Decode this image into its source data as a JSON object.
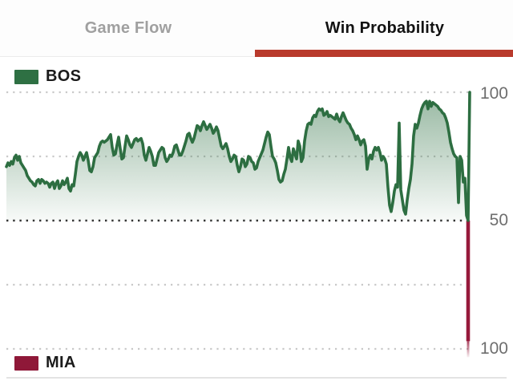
{
  "tabs": {
    "game_flow_label": "Game Flow",
    "win_probability_label": "Win Probability",
    "active_tab": "Win Probability",
    "active_underline_color": "#b93a2c"
  },
  "legend": {
    "top_team": "BOS",
    "top_color": "#2e7043",
    "bottom_team": "MIA",
    "bottom_color": "#8f1838"
  },
  "axis": {
    "labels": [
      {
        "text": "100",
        "side": "BOS"
      },
      {
        "text": "50",
        "side": "mid"
      },
      {
        "text": "100",
        "side": "MIA"
      }
    ]
  },
  "colors": {
    "bos_line": "#2d6e41",
    "mia_line": "#96193b",
    "grid_light": "#c9c9c9",
    "grid_dark": "#343434",
    "inactive_tab_text": "#a0a0a0",
    "active_tab_text": "#121212"
  },
  "chart_data": {
    "type": "area",
    "title": "Win Probability",
    "teams": [
      "BOS",
      "MIA"
    ],
    "ylabel": "",
    "xlabel": "",
    "x_axis_note": "game time, no tick labels shown",
    "y_axis_note": "mirrored axis: BOS 50-100 upward, MIA 50-100 downward; right-side tick labels 100 / 50 / 100",
    "gridlines": [
      {
        "side": "BOS",
        "value": 100,
        "style": "light"
      },
      {
        "side": "BOS",
        "value": 75,
        "style": "light"
      },
      {
        "side": "mid",
        "value": 50,
        "style": "dark"
      },
      {
        "side": "MIA",
        "value": 75,
        "style": "light"
      },
      {
        "side": "MIA",
        "value": 100,
        "style": "light"
      }
    ],
    "series_name": "BOS win probability (%), values below 50 mean MIA favored",
    "bos_win_prob_pct": [
      71,
      72.5,
      71.5,
      73,
      72,
      74.5,
      75.5,
      73.5,
      75,
      72.5,
      71.5,
      70.5,
      69.5,
      67.5,
      66.5,
      65.5,
      65,
      64,
      63.5,
      65.5,
      66,
      64.5,
      66,
      65.5,
      64.5,
      65,
      64.5,
      63,
      64.5,
      65,
      62.5,
      64.5,
      65.5,
      62.5,
      63.5,
      65.5,
      64,
      65,
      66.5,
      62.5,
      61.5,
      64,
      63.5,
      68,
      73,
      75,
      76.5,
      75.5,
      73.5,
      75,
      76.5,
      73.5,
      69.5,
      69,
      71,
      74.5,
      75.5,
      76.5,
      79,
      80.5,
      81,
      80.5,
      81,
      81.5,
      82.5,
      83.5,
      78.5,
      75.5,
      76,
      79.5,
      82.5,
      78,
      74,
      74.5,
      79,
      83,
      81.5,
      79.5,
      78.5,
      80,
      81.5,
      82,
      81,
      81.5,
      82,
      80,
      75.5,
      73.5,
      76,
      78.5,
      77,
      75,
      71.5,
      71.5,
      74,
      76.5,
      77.5,
      78.5,
      78,
      74.5,
      73,
      74,
      75.5,
      75,
      76.5,
      79,
      79.5,
      77.5,
      75.5,
      75.5,
      77,
      79,
      81,
      83.5,
      84,
      82,
      80.5,
      82,
      84.5,
      87,
      86.5,
      85,
      87,
      88.5,
      87,
      85.5,
      86.5,
      87.5,
      86,
      84,
      85,
      86.5,
      85,
      82,
      79,
      78,
      79,
      80,
      78,
      75,
      73,
      74,
      75.5,
      75,
      71.5,
      69,
      71,
      74,
      73.5,
      71,
      72,
      75,
      74.5,
      73,
      72.5,
      70,
      70.5,
      73,
      74.5,
      76,
      77.5,
      80,
      82.5,
      84.5,
      83.5,
      79,
      75,
      74,
      72.5,
      69.5,
      66,
      65,
      65.5,
      68,
      70,
      74,
      78.5,
      74.5,
      73,
      78,
      76,
      74,
      81,
      79,
      73,
      74.5,
      81,
      85,
      87.5,
      88,
      87.5,
      90,
      91,
      90.5,
      92.5,
      93.5,
      93,
      93.5,
      91,
      91.5,
      92.5,
      90.5,
      91,
      90.5,
      90,
      89.5,
      91.5,
      89.5,
      88.5,
      90.5,
      92,
      90.5,
      89,
      88,
      87.5,
      86,
      85,
      83.5,
      81.5,
      83,
      81.5,
      79.5,
      81,
      81.5,
      79,
      70,
      74,
      75.5,
      74,
      77,
      78.5,
      77.5,
      78.5,
      76.5,
      73.5,
      75,
      74,
      72,
      63,
      56,
      53.5,
      57,
      61.5,
      64,
      63,
      88,
      62,
      58,
      54,
      52.5,
      58,
      62.5,
      66,
      72,
      83,
      87.5,
      86,
      88,
      91,
      93.5,
      95,
      96,
      96.5,
      93.5,
      96.5,
      94.5,
      96,
      95.5,
      95,
      94.5,
      93.5,
      93,
      92,
      91.5,
      90,
      88,
      84.5,
      80.5,
      78,
      76,
      75,
      74.5,
      57,
      75,
      73.5,
      65,
      66.5,
      52,
      3,
      100
    ]
  }
}
